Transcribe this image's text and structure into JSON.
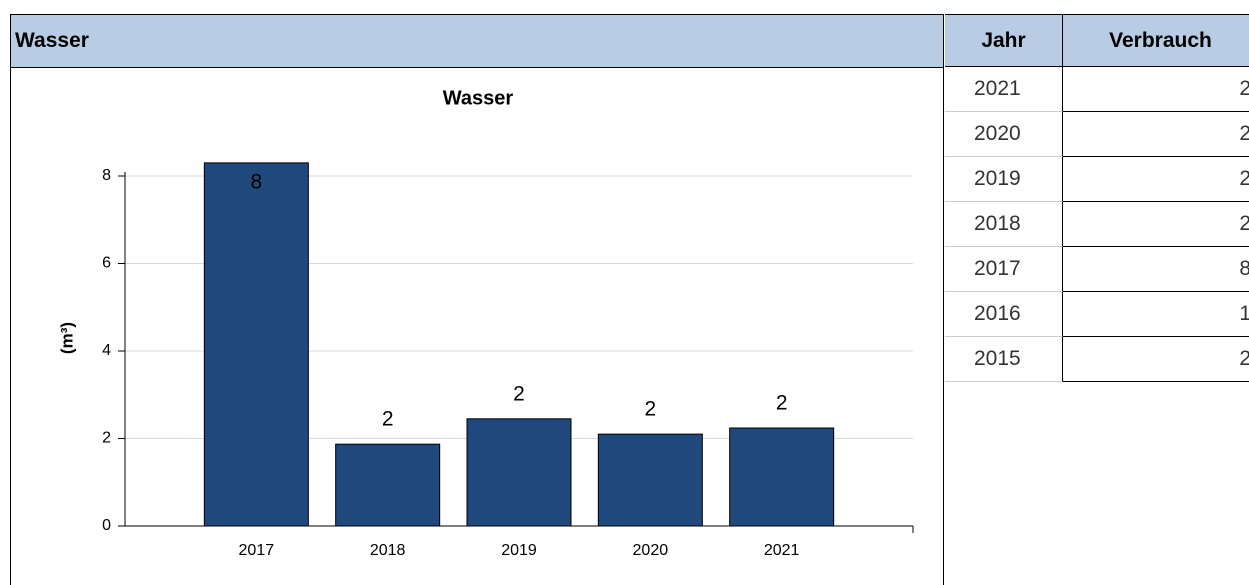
{
  "panel_title": "Wasser",
  "chart_data": {
    "type": "bar",
    "title": "Wasser",
    "y_label": "(m³)",
    "categories": [
      "2017",
      "2018",
      "2019",
      "2020",
      "2021"
    ],
    "values": [
      8.3,
      1.87,
      2.45,
      2.1,
      2.24
    ],
    "value_labels": [
      "8",
      "2",
      "2",
      "2",
      "2"
    ],
    "color": "#1f497d",
    "ylim": [
      0,
      8
    ],
    "yticks": [
      0,
      2,
      4,
      6,
      8
    ],
    "grid": true
  },
  "table": {
    "columns": [
      "Jahr",
      "Verbrauch"
    ],
    "rows": [
      [
        "2021",
        "2"
      ],
      [
        "2020",
        "2"
      ],
      [
        "2019",
        "2"
      ],
      [
        "2018",
        "2"
      ],
      [
        "2017",
        "8"
      ],
      [
        "2016",
        "1"
      ],
      [
        "2015",
        "2"
      ]
    ]
  }
}
